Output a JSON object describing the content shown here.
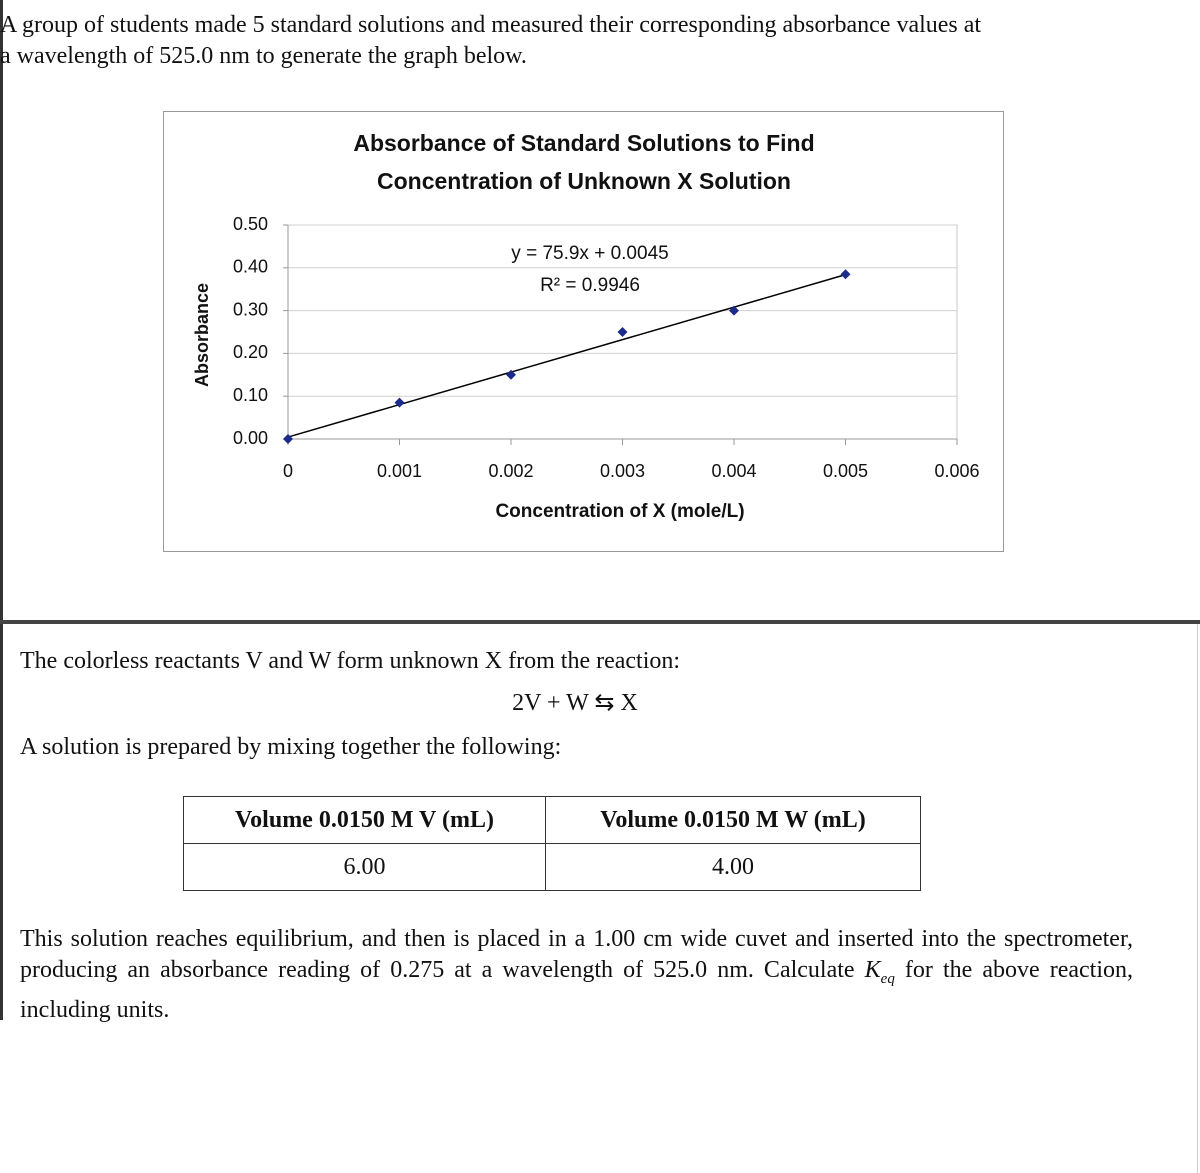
{
  "intro": {
    "lines": [
      "A group of students made 5 standard solutions and measured their corresponding absorbance values at",
      "a wavelength of 525.0 nm to generate the graph below."
    ]
  },
  "chart_data": {
    "type": "scatter",
    "title": [
      "Absorbance of Standard Solutions to Find",
      "Concentration of Unknown X Solution"
    ],
    "x_label": "Concentration of X (mole/L)",
    "y_label": "Absorbance",
    "x": [
      0,
      0.001,
      0.002,
      0.003,
      0.004,
      0.005
    ],
    "series": [
      {
        "name": "Absorbance",
        "color": "#1c2b8a",
        "values": [
          0,
          0.085,
          0.15,
          0.25,
          0.3,
          0.385
        ]
      }
    ],
    "trendline": {
      "slope": 75.9,
      "intercept": 0.0045,
      "color": "#000000",
      "equation": "y = 75.9x + 0.0045",
      "r2": "R² = 0.9946"
    },
    "xlim": [
      0,
      0.006
    ],
    "xticks": [
      0,
      0.001,
      0.002,
      0.003,
      0.004,
      0.005,
      0.006
    ],
    "ylim": [
      0,
      0.5
    ],
    "yticks": [
      {
        "value": 0,
        "label": "0.00"
      },
      {
        "value": 0.1,
        "label": "0.10"
      },
      {
        "value": 0.2,
        "label": "0.20"
      },
      {
        "value": 0.3,
        "label": "0.30"
      },
      {
        "value": 0.4,
        "label": "0.40"
      },
      {
        "value": 0.5,
        "label": "0.50"
      }
    ],
    "grid": true
  },
  "reaction": {
    "text": "The colorless reactants V and W form unknown X from the reaction:",
    "equation": "2V + W ⇆ X"
  },
  "mixing": "A solution is prepared by mixing together the following:",
  "table": {
    "header": [
      "Volume 0.0150 M V (mL)",
      "Volume 0.0150 M W (mL)"
    ],
    "rows": [
      [
        "6.00",
        "4.00"
      ]
    ]
  },
  "question": {
    "parts": [
      "This solution reaches equilibrium, and then is placed in a 1.00 cm wide cuvet and inserted into the spectrometer, producing an absorbance reading of 0.275 at a wavelength of 525.0 nm. Calculate ",
      "K",
      "eq",
      " for the above reaction, including units."
    ]
  }
}
